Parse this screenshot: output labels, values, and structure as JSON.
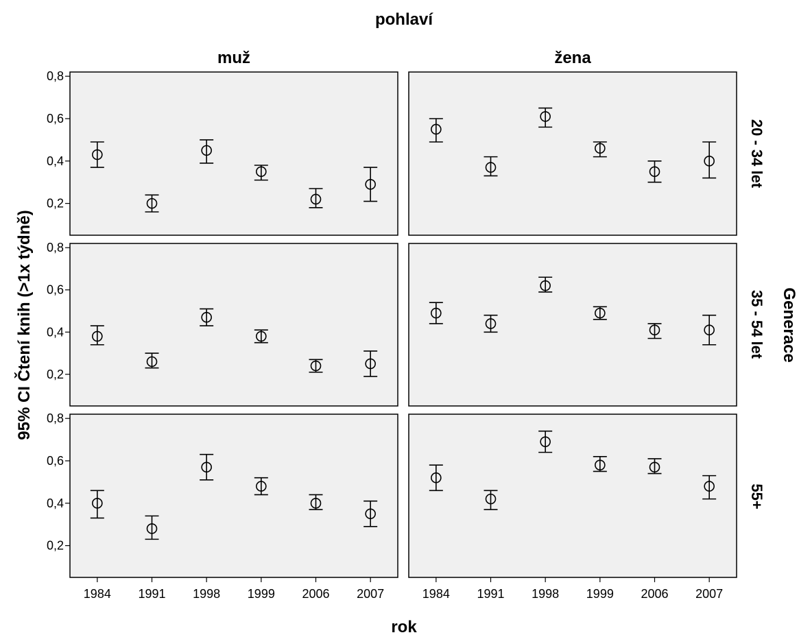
{
  "chart_data": {
    "type": "scatter",
    "title": "pohlaví",
    "xlabel": "rok",
    "ylabel": "95% CI Čtení knih (>1x týdně)",
    "row_facet_title": "Generace",
    "columns": [
      "muž",
      "žena"
    ],
    "rows": [
      "20 - 34 let",
      "35 - 54 let",
      "55+"
    ],
    "categories": [
      "1984",
      "1991",
      "1998",
      "1999",
      "2006",
      "2007"
    ],
    "y_ticks": [
      "0,2",
      "0,4",
      "0,6",
      "0,8"
    ],
    "y_tick_values": [
      0.2,
      0.4,
      0.6,
      0.8
    ],
    "ylim": [
      0.05,
      0.82
    ],
    "grid": false,
    "panels": [
      {
        "column": "muž",
        "row": "20 - 34 let",
        "mean": [
          0.43,
          0.2,
          0.45,
          0.35,
          0.22,
          0.29
        ],
        "lower": [
          0.37,
          0.16,
          0.39,
          0.31,
          0.18,
          0.21
        ],
        "upper": [
          0.49,
          0.24,
          0.5,
          0.38,
          0.27,
          0.37
        ]
      },
      {
        "column": "žena",
        "row": "20 - 34 let",
        "mean": [
          0.55,
          0.37,
          0.61,
          0.46,
          0.35,
          0.4
        ],
        "lower": [
          0.49,
          0.33,
          0.56,
          0.42,
          0.3,
          0.32
        ],
        "upper": [
          0.6,
          0.42,
          0.65,
          0.49,
          0.4,
          0.49
        ]
      },
      {
        "column": "muž",
        "row": "35 - 54 let",
        "mean": [
          0.38,
          0.26,
          0.47,
          0.38,
          0.24,
          0.25
        ],
        "lower": [
          0.34,
          0.23,
          0.43,
          0.35,
          0.21,
          0.19
        ],
        "upper": [
          0.43,
          0.3,
          0.51,
          0.41,
          0.27,
          0.31
        ]
      },
      {
        "column": "žena",
        "row": "35 - 54 let",
        "mean": [
          0.49,
          0.44,
          0.62,
          0.49,
          0.41,
          0.41
        ],
        "lower": [
          0.44,
          0.4,
          0.59,
          0.46,
          0.37,
          0.34
        ],
        "upper": [
          0.54,
          0.48,
          0.66,
          0.52,
          0.44,
          0.48
        ]
      },
      {
        "column": "muž",
        "row": "55+",
        "mean": [
          0.4,
          0.28,
          0.57,
          0.48,
          0.4,
          0.35
        ],
        "lower": [
          0.33,
          0.23,
          0.51,
          0.44,
          0.37,
          0.29
        ],
        "upper": [
          0.46,
          0.34,
          0.63,
          0.52,
          0.44,
          0.41
        ]
      },
      {
        "column": "žena",
        "row": "55+",
        "mean": [
          0.52,
          0.42,
          0.69,
          0.58,
          0.57,
          0.48
        ],
        "lower": [
          0.46,
          0.37,
          0.64,
          0.55,
          0.54,
          0.42
        ],
        "upper": [
          0.58,
          0.46,
          0.74,
          0.62,
          0.61,
          0.53
        ]
      }
    ]
  }
}
